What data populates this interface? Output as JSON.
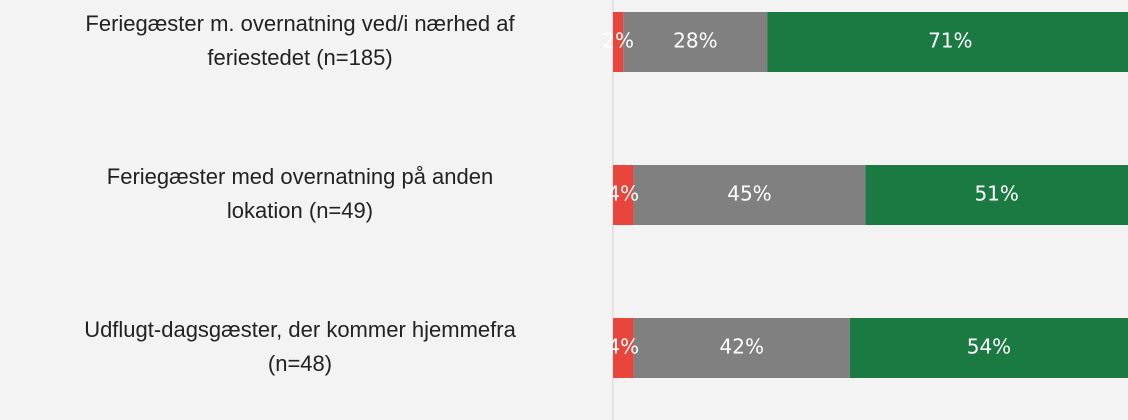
{
  "chart_data": {
    "type": "stacked-bar-horizontal",
    "categories": [
      [
        "Feriegæster m. overnatning ved/i nærhed af",
        "feriestedet (n=185)"
      ],
      [
        "Feriegæster med overnatning på anden",
        "lokation (n=49)"
      ],
      [
        "Udflugt-dagsgæster, der kommer hjemmefra",
        "(n=48)"
      ]
    ],
    "series": [
      {
        "color": "#e8453c",
        "values": [
          2,
          4,
          4
        ],
        "value_labels": [
          "2%",
          "4%",
          "4%"
        ]
      },
      {
        "color": "#808080",
        "values": [
          28,
          45,
          42
        ],
        "value_labels": [
          "28%",
          "45%",
          "42%"
        ]
      },
      {
        "color": "#1b7a42",
        "values": [
          71,
          51,
          54
        ],
        "value_labels": [
          "71%",
          "51%",
          "54%"
        ]
      }
    ],
    "xlim": [
      0,
      100
    ]
  }
}
